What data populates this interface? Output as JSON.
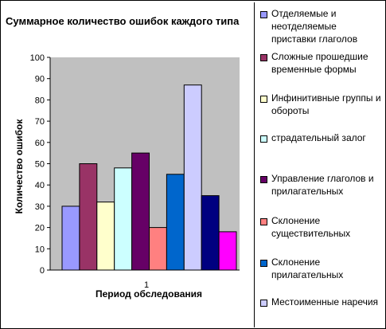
{
  "chart_data": {
    "type": "bar",
    "title": "Суммарное количество ошибок каждого типа",
    "xlabel": "Период обследования",
    "ylabel": "Количество ошибок",
    "categories": [
      "1"
    ],
    "ylim": [
      0,
      100
    ],
    "yticks": [
      0,
      10,
      20,
      30,
      40,
      50,
      60,
      70,
      80,
      90,
      100
    ],
    "plot_background": "#c0c0c0",
    "grid": false,
    "legend_position": "right",
    "series": [
      {
        "name": "Отделяемые и неотделяемые приставки глаголов",
        "value": 30,
        "color": "#9999ff"
      },
      {
        "name": "Сложные прошедшие временные формы",
        "value": 50,
        "color": "#993366"
      },
      {
        "name": "Инфинитивные группы и обороты",
        "value": 32,
        "color": "#ffffcc"
      },
      {
        "name": "страдательный залог",
        "value": 48,
        "color": "#ccffff"
      },
      {
        "name": "Управление глаголов и прилагательных",
        "value": 55,
        "color": "#660066"
      },
      {
        "name": "Склонение существительных",
        "value": 20,
        "color": "#ff8080"
      },
      {
        "name": "Склонение прилагательных",
        "value": 45,
        "color": "#0066cc"
      },
      {
        "name": "Местоименные наречия",
        "value": 87,
        "color": "#ccccff"
      },
      {
        "name": "",
        "value": 35,
        "color": "#000080"
      },
      {
        "name": "",
        "value": 18,
        "color": "#ff00ff"
      }
    ]
  }
}
